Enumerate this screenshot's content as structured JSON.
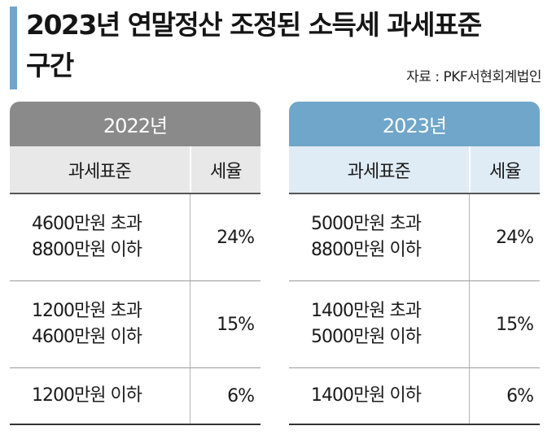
{
  "title": {
    "line1": "2023년 연말정산 조정된 소득세 과세표준",
    "line2": "구간"
  },
  "source": "자료 : PKF서현회계법인",
  "colors": {
    "accent": "#6fa6c9",
    "left_header": "#8a8a8a",
    "right_header": "#6fa6c9"
  },
  "tables": [
    {
      "year": "2022년",
      "headers": {
        "base": "과세표준",
        "rate": "세율"
      },
      "rows": [
        {
          "line1": "4600만원 초과",
          "line2": "8800만원 이하",
          "rate": "24%"
        },
        {
          "line1": "1200만원 초과",
          "line2": "4600만원 이하",
          "rate": "15%"
        },
        {
          "line1": "1200만원 이하",
          "rate": "6%"
        }
      ]
    },
    {
      "year": "2023년",
      "headers": {
        "base": "과세표준",
        "rate": "세율"
      },
      "rows": [
        {
          "line1": "5000만원 초과",
          "line2": "8800만원 이하",
          "rate": "24%"
        },
        {
          "line1": "1400만원 초과",
          "line2": "5000만원 이하",
          "rate": "15%"
        },
        {
          "line1": "1400만원 이하",
          "rate": "6%"
        }
      ]
    }
  ]
}
